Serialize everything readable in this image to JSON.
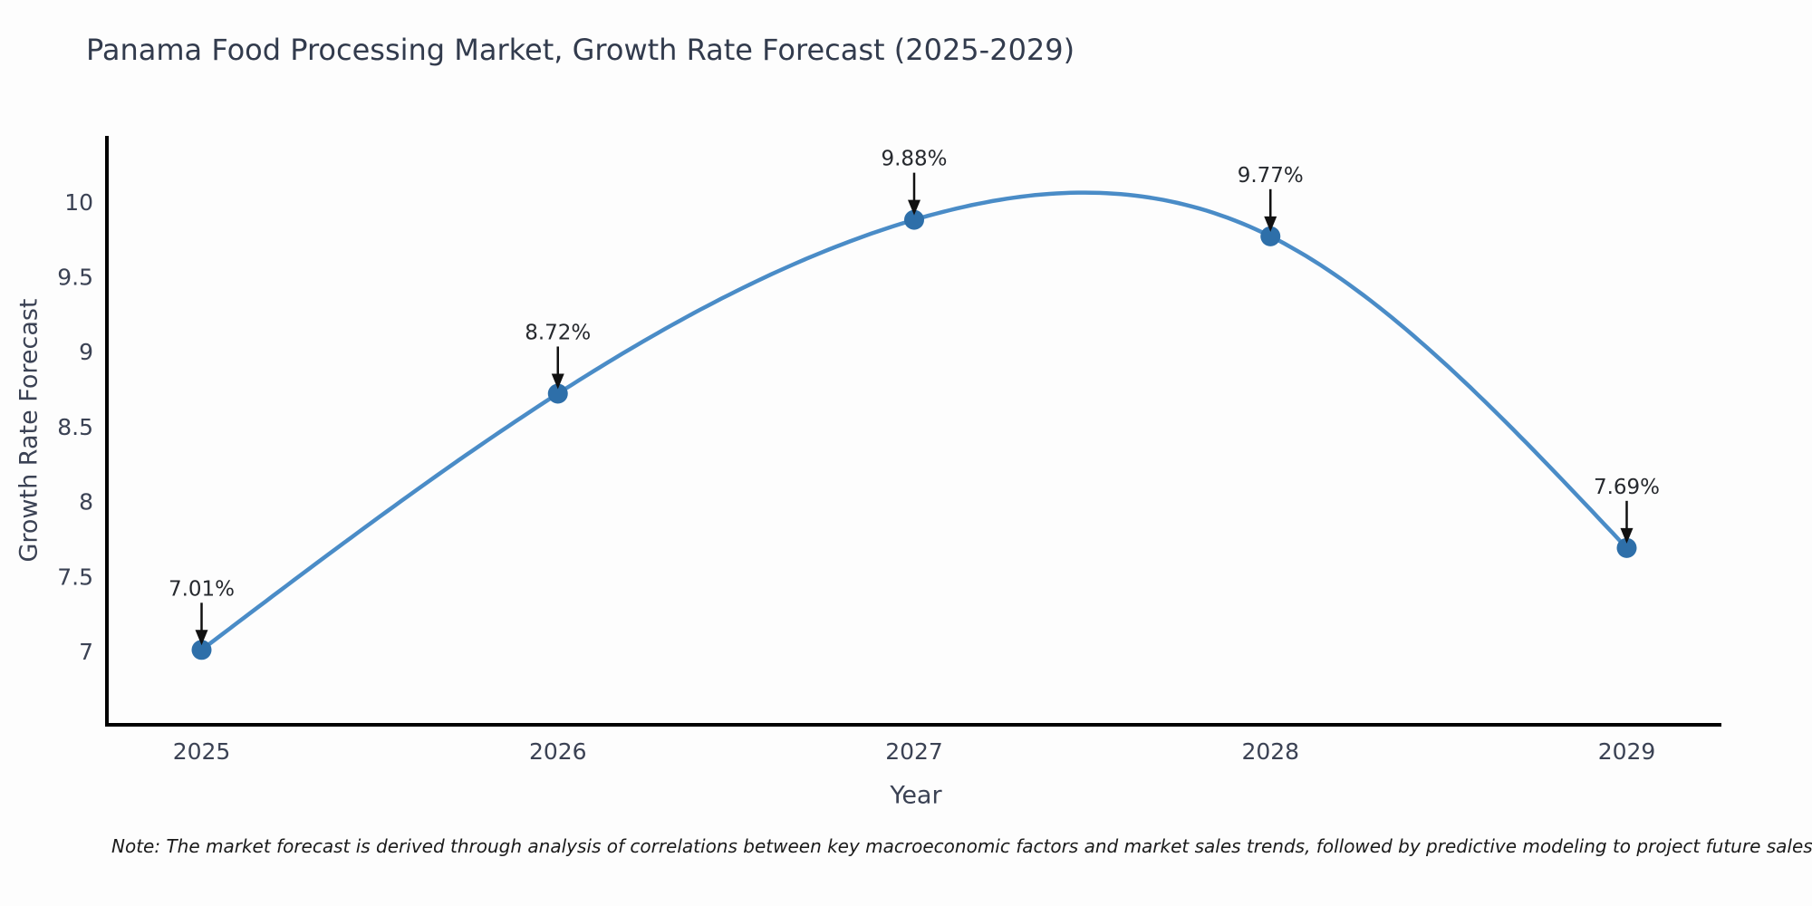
{
  "page": {
    "note": "Note: The market forecast is derived through analysis of correlations between key macroeconomic factors and market sales trends, followed by predictive modeling to project future sales"
  },
  "chart_data": {
    "type": "line",
    "title": "Panama Food Processing Market, Growth Rate Forecast (2025-2029)",
    "xlabel": "Year",
    "ylabel": "Growth Rate Forecast",
    "categories": [
      "2025",
      "2026",
      "2027",
      "2028",
      "2029"
    ],
    "series": [
      {
        "name": "Growth Rate Forecast",
        "values": [
          7.01,
          8.72,
          9.88,
          9.77,
          7.69
        ],
        "labels": [
          "7.01%",
          "8.72%",
          "9.88%",
          "9.77%",
          "7.69%"
        ]
      }
    ],
    "y_ticks": [
      7,
      7.5,
      8,
      8.5,
      9,
      9.5,
      10
    ],
    "ylim": [
      6.51,
      10.44
    ],
    "line_shape": "spline",
    "grid": false,
    "legend": false,
    "colors": {
      "line": "#4a8cc7",
      "marker": "#2e6fa9",
      "axis": "#000000",
      "arrow": "#111111",
      "tick_label": "#3b4254",
      "title": "#323b4d",
      "background": "#fdfdfd"
    }
  }
}
